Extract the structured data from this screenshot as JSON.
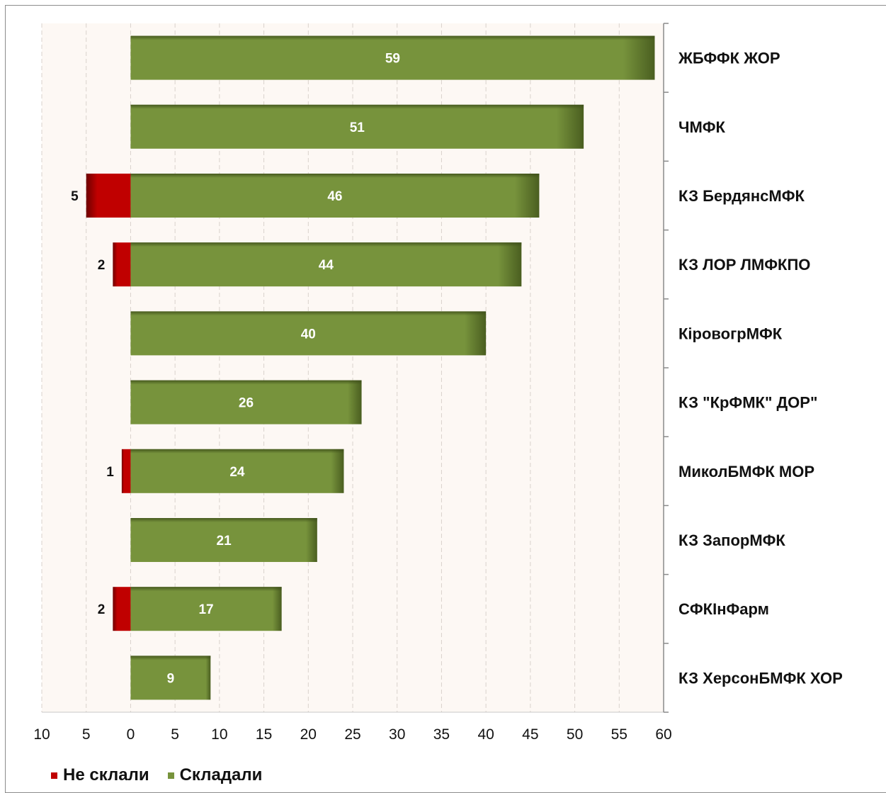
{
  "chart_data": {
    "type": "bar",
    "orientation": "horizontal",
    "categories": [
      "ЖБФФК ЖОР",
      "ЧМФК",
      "КЗ БердянсМФК",
      "КЗ ЛОР ЛМФКПО",
      "КіровогрМФК",
      "КЗ \"КрФМК\" ДОР\"",
      "МиколБМФК МОР",
      "КЗ ЗапорМФК",
      "СФКІнФарм",
      "КЗ ХерсонБМФК ХОР"
    ],
    "series": [
      {
        "name": "Не склали",
        "color": "#c00000",
        "values": [
          0,
          0,
          5,
          2,
          0,
          0,
          1,
          0,
          2,
          0
        ]
      },
      {
        "name": "Складали",
        "color": "#77933c",
        "values": [
          59,
          51,
          46,
          44,
          40,
          26,
          24,
          21,
          17,
          9
        ]
      }
    ],
    "xlim": [
      -10,
      60
    ],
    "x_ticks": [
      -10,
      -5,
      0,
      5,
      10,
      15,
      20,
      25,
      30,
      35,
      40,
      45,
      50,
      55,
      60
    ],
    "x_tick_labels": [
      "10",
      "5",
      "0",
      "5",
      "10",
      "15",
      "20",
      "25",
      "30",
      "35",
      "40",
      "45",
      "50",
      "55",
      "60"
    ],
    "grid": true,
    "legend_position": "bottom-left",
    "plot_background": "#fdf8f4"
  },
  "legend": {
    "items": [
      {
        "label": "Не склали",
        "color": "#c00000"
      },
      {
        "label": "Складали",
        "color": "#77933c"
      }
    ]
  }
}
